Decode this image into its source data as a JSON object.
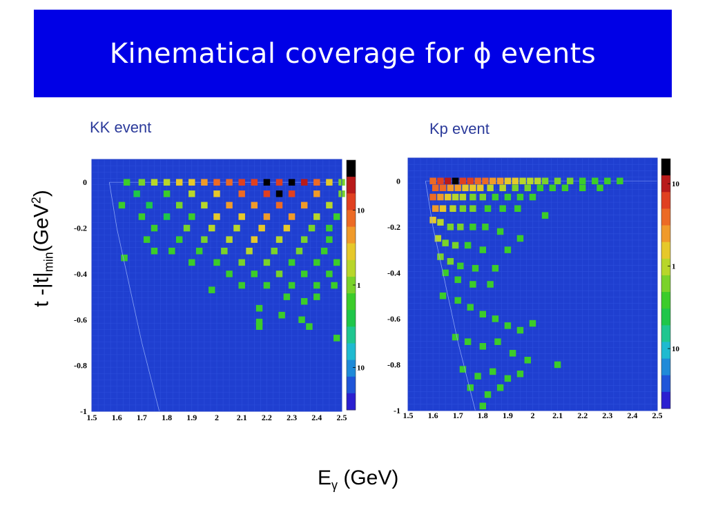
{
  "slide": {
    "title_text": "Kinematical coverage for",
    "title_symbol": "ϕ",
    "title_suffix": "events",
    "y_axis_label": {
      "main": "t -|t|",
      "sub": "min",
      "unit_pre": "(GeV",
      "sup": "2",
      "unit_post": ")"
    },
    "x_axis_label": {
      "main": "E",
      "sub": "γ",
      "unit": "(GeV)"
    }
  },
  "colors": {
    "banner": "#0000e6",
    "title": "#ffffff",
    "panel_label": "#2b3a9a",
    "plot_background": "#1f3fd0",
    "palette": [
      "#2b1fd0",
      "#1f55d8",
      "#1f8ad8",
      "#1fbad0",
      "#1fc690",
      "#1fc64a",
      "#3ccc2a",
      "#7ad22a",
      "#b8d62a",
      "#e6c82a",
      "#f09a2a",
      "#ec6a24",
      "#e04020",
      "#b81a1a",
      "#000000"
    ]
  },
  "chart_data": [
    {
      "type": "heatmap",
      "panel_label": "KK event",
      "x_range": [
        1.5,
        2.5
      ],
      "y_range": [
        -1,
        0.1
      ],
      "x_ticks": [
        "1.5",
        "1.6",
        "1.7",
        "1.8",
        "1.9",
        "2",
        "2.1",
        "2.2",
        "2.3",
        "2.4",
        "2.5"
      ],
      "y_ticks": [
        "0",
        "-0.2",
        "-0.4",
        "-0.6",
        "-0.8",
        "-1"
      ],
      "colorbar_ticks": [
        {
          "label": "10",
          "level": 0.8
        },
        {
          "label": "1",
          "level": 0.5
        },
        {
          "label": "10",
          "level": 0.17
        }
      ],
      "boundary_curve": [
        [
          1.57,
          0.0
        ],
        [
          1.6,
          -0.2
        ],
        [
          1.65,
          -0.45
        ],
        [
          1.7,
          -0.7
        ],
        [
          1.77,
          -1.0
        ]
      ],
      "cells": [
        [
          [
            1.64,
            0.0,
            6
          ],
          [
            1.7,
            0.0,
            7
          ],
          [
            1.75,
            0.0,
            8
          ],
          [
            1.8,
            0.0,
            8
          ],
          [
            1.85,
            0.0,
            9
          ],
          [
            1.9,
            0.0,
            9
          ],
          [
            1.95,
            0.0,
            10
          ],
          [
            2.0,
            0.0,
            11
          ],
          [
            2.05,
            0.0,
            11
          ],
          [
            2.1,
            0.0,
            12
          ],
          [
            2.15,
            0.0,
            12
          ],
          [
            2.2,
            0.0,
            14
          ],
          [
            2.25,
            0.0,
            12
          ],
          [
            2.3,
            0.0,
            14
          ],
          [
            2.35,
            0.0,
            13
          ],
          [
            2.4,
            0.0,
            11
          ],
          [
            2.45,
            0.0,
            9
          ],
          [
            2.5,
            0.0,
            7
          ]
        ],
        [
          [
            1.68,
            -0.05,
            5
          ],
          [
            1.8,
            -0.05,
            6
          ],
          [
            1.9,
            -0.05,
            8
          ],
          [
            2.0,
            -0.05,
            9
          ],
          [
            2.1,
            -0.05,
            11
          ],
          [
            2.2,
            -0.05,
            12
          ],
          [
            2.25,
            -0.05,
            14
          ],
          [
            2.3,
            -0.05,
            12
          ],
          [
            2.4,
            -0.05,
            10
          ],
          [
            2.5,
            -0.05,
            7
          ]
        ],
        [
          [
            1.62,
            -0.1,
            6
          ],
          [
            1.73,
            -0.1,
            5
          ],
          [
            1.85,
            -0.1,
            7
          ],
          [
            1.95,
            -0.1,
            8
          ],
          [
            2.05,
            -0.1,
            10
          ],
          [
            2.15,
            -0.1,
            10
          ],
          [
            2.25,
            -0.1,
            11
          ],
          [
            2.35,
            -0.1,
            10
          ],
          [
            2.45,
            -0.1,
            8
          ]
        ],
        [
          [
            1.7,
            -0.15,
            6
          ],
          [
            1.8,
            -0.15,
            5
          ],
          [
            1.9,
            -0.15,
            6
          ],
          [
            2.0,
            -0.15,
            9
          ],
          [
            2.1,
            -0.15,
            9
          ],
          [
            2.2,
            -0.15,
            10
          ],
          [
            2.3,
            -0.15,
            10
          ],
          [
            2.4,
            -0.15,
            8
          ],
          [
            2.48,
            -0.15,
            6
          ]
        ],
        [
          [
            1.75,
            -0.2,
            6
          ],
          [
            1.88,
            -0.2,
            7
          ],
          [
            1.98,
            -0.2,
            8
          ],
          [
            2.08,
            -0.2,
            8
          ],
          [
            2.18,
            -0.2,
            9
          ],
          [
            2.28,
            -0.2,
            9
          ],
          [
            2.38,
            -0.2,
            7
          ],
          [
            2.45,
            -0.2,
            6
          ]
        ],
        [
          [
            1.72,
            -0.25,
            6
          ],
          [
            1.85,
            -0.25,
            6
          ],
          [
            1.95,
            -0.25,
            7
          ],
          [
            2.05,
            -0.25,
            8
          ],
          [
            2.15,
            -0.25,
            9
          ],
          [
            2.25,
            -0.25,
            8
          ],
          [
            2.35,
            -0.25,
            7
          ],
          [
            2.45,
            -0.25,
            6
          ]
        ],
        [
          [
            1.75,
            -0.3,
            6
          ],
          [
            1.82,
            -0.3,
            6
          ],
          [
            1.93,
            -0.3,
            6
          ],
          [
            2.03,
            -0.3,
            7
          ],
          [
            2.13,
            -0.3,
            8
          ],
          [
            2.23,
            -0.3,
            7
          ],
          [
            2.33,
            -0.3,
            7
          ],
          [
            2.43,
            -0.3,
            6
          ]
        ],
        [
          [
            1.63,
            -0.33,
            6
          ],
          [
            1.9,
            -0.35,
            6
          ],
          [
            2.0,
            -0.35,
            6
          ],
          [
            2.1,
            -0.35,
            7
          ],
          [
            2.2,
            -0.35,
            7
          ],
          [
            2.3,
            -0.35,
            6
          ],
          [
            2.4,
            -0.35,
            6
          ],
          [
            2.48,
            -0.35,
            6
          ]
        ],
        [
          [
            2.05,
            -0.4,
            6
          ],
          [
            2.15,
            -0.4,
            6
          ],
          [
            2.25,
            -0.4,
            7
          ],
          [
            2.35,
            -0.4,
            6
          ],
          [
            2.45,
            -0.4,
            6
          ],
          [
            2.1,
            -0.45,
            6
          ],
          [
            2.2,
            -0.45,
            6
          ],
          [
            2.3,
            -0.45,
            6
          ],
          [
            2.4,
            -0.45,
            6
          ],
          [
            2.47,
            -0.45,
            6
          ]
        ],
        [
          [
            1.98,
            -0.47,
            6
          ],
          [
            2.28,
            -0.5,
            6
          ],
          [
            2.35,
            -0.52,
            6
          ],
          [
            2.4,
            -0.5,
            6
          ],
          [
            2.17,
            -0.55,
            6
          ],
          [
            2.26,
            -0.58,
            6
          ],
          [
            2.34,
            -0.6,
            6
          ],
          [
            2.17,
            -0.61,
            6
          ],
          [
            2.17,
            -0.63,
            6
          ],
          [
            2.37,
            -0.63,
            6
          ],
          [
            2.48,
            -0.68,
            6
          ]
        ]
      ]
    },
    {
      "type": "heatmap",
      "panel_label": "Kp event",
      "x_range": [
        1.5,
        2.5
      ],
      "y_range": [
        -1,
        0.1
      ],
      "x_ticks": [
        "1.5",
        "1.6",
        "1.7",
        "1.8",
        "1.9",
        "2",
        "2.1",
        "2.2",
        "2.3",
        "2.4",
        "2.5"
      ],
      "y_ticks": [
        "0",
        "-0.2",
        "-0.4",
        "-0.6",
        "-0.8",
        "-1"
      ],
      "colorbar_ticks": [
        {
          "label": "10",
          "level": 0.9
        },
        {
          "label": "1",
          "level": 0.57
        },
        {
          "label": "10",
          "level": 0.24
        }
      ],
      "boundary_curve": [
        [
          1.57,
          0.0
        ],
        [
          1.6,
          -0.2
        ],
        [
          1.65,
          -0.45
        ],
        [
          1.7,
          -0.7
        ],
        [
          1.77,
          -1.0
        ]
      ],
      "cells": [
        [
          [
            1.6,
            0.0,
            11
          ],
          [
            1.63,
            0.0,
            12
          ],
          [
            1.66,
            0.0,
            13
          ],
          [
            1.69,
            0.0,
            14
          ],
          [
            1.72,
            0.0,
            12
          ],
          [
            1.75,
            0.0,
            12
          ],
          [
            1.78,
            0.0,
            11
          ],
          [
            1.81,
            0.0,
            11
          ],
          [
            1.84,
            0.0,
            10
          ],
          [
            1.87,
            0.0,
            10
          ],
          [
            1.9,
            0.0,
            9
          ],
          [
            1.93,
            0.0,
            9
          ],
          [
            1.96,
            0.0,
            8
          ],
          [
            1.99,
            0.0,
            8
          ],
          [
            2.02,
            0.0,
            8
          ],
          [
            2.05,
            0.0,
            7
          ],
          [
            2.1,
            0.0,
            7
          ],
          [
            2.15,
            0.0,
            7
          ],
          [
            2.2,
            0.0,
            6
          ],
          [
            2.25,
            0.0,
            6
          ],
          [
            2.3,
            0.0,
            6
          ],
          [
            2.35,
            0.0,
            6
          ]
        ],
        [
          [
            1.61,
            -0.03,
            11
          ],
          [
            1.64,
            -0.03,
            11
          ],
          [
            1.67,
            -0.03,
            10
          ],
          [
            1.7,
            -0.03,
            10
          ],
          [
            1.73,
            -0.03,
            9
          ],
          [
            1.76,
            -0.03,
            9
          ],
          [
            1.79,
            -0.03,
            9
          ],
          [
            1.83,
            -0.03,
            8
          ],
          [
            1.88,
            -0.03,
            8
          ],
          [
            1.93,
            -0.03,
            7
          ],
          [
            1.98,
            -0.03,
            7
          ],
          [
            2.03,
            -0.03,
            6
          ],
          [
            2.08,
            -0.03,
            6
          ],
          [
            2.13,
            -0.03,
            6
          ],
          [
            2.2,
            -0.03,
            6
          ],
          [
            2.27,
            -0.03,
            6
          ]
        ],
        [
          [
            1.6,
            -0.07,
            11
          ],
          [
            1.63,
            -0.07,
            10
          ],
          [
            1.66,
            -0.07,
            9
          ],
          [
            1.69,
            -0.07,
            8
          ],
          [
            1.72,
            -0.07,
            8
          ],
          [
            1.76,
            -0.07,
            7
          ],
          [
            1.8,
            -0.07,
            7
          ],
          [
            1.85,
            -0.07,
            6
          ],
          [
            1.9,
            -0.07,
            6
          ],
          [
            1.95,
            -0.07,
            6
          ],
          [
            2.0,
            -0.07,
            6
          ]
        ],
        [
          [
            1.61,
            -0.12,
            10
          ],
          [
            1.64,
            -0.12,
            9
          ],
          [
            1.68,
            -0.12,
            8
          ],
          [
            1.72,
            -0.12,
            7
          ],
          [
            1.76,
            -0.12,
            7
          ],
          [
            1.82,
            -0.12,
            6
          ],
          [
            1.88,
            -0.12,
            6
          ],
          [
            1.94,
            -0.12,
            6
          ],
          [
            2.05,
            -0.15,
            6
          ]
        ],
        [
          [
            1.6,
            -0.17,
            9
          ],
          [
            1.63,
            -0.18,
            8
          ],
          [
            1.67,
            -0.2,
            7
          ],
          [
            1.71,
            -0.2,
            7
          ],
          [
            1.76,
            -0.2,
            6
          ],
          [
            1.81,
            -0.2,
            6
          ],
          [
            1.87,
            -0.22,
            6
          ],
          [
            1.95,
            -0.25,
            6
          ]
        ],
        [
          [
            1.62,
            -0.25,
            8
          ],
          [
            1.65,
            -0.27,
            7
          ],
          [
            1.69,
            -0.28,
            7
          ],
          [
            1.74,
            -0.28,
            6
          ],
          [
            1.8,
            -0.3,
            6
          ],
          [
            1.9,
            -0.3,
            6
          ]
        ],
        [
          [
            1.63,
            -0.33,
            7
          ],
          [
            1.67,
            -0.35,
            7
          ],
          [
            1.71,
            -0.37,
            6
          ],
          [
            1.77,
            -0.38,
            6
          ],
          [
            1.85,
            -0.38,
            6
          ],
          [
            1.65,
            -0.4,
            6
          ],
          [
            1.7,
            -0.43,
            6
          ],
          [
            1.76,
            -0.45,
            6
          ],
          [
            1.83,
            -0.45,
            6
          ]
        ],
        [
          [
            1.64,
            -0.5,
            6
          ],
          [
            1.7,
            -0.52,
            6
          ],
          [
            1.75,
            -0.55,
            6
          ],
          [
            1.8,
            -0.58,
            6
          ],
          [
            1.85,
            -0.6,
            6
          ],
          [
            1.9,
            -0.63,
            6
          ],
          [
            1.95,
            -0.65,
            6
          ],
          [
            2.0,
            -0.62,
            6
          ]
        ],
        [
          [
            1.69,
            -0.68,
            6
          ],
          [
            1.74,
            -0.7,
            6
          ],
          [
            1.8,
            -0.72,
            6
          ],
          [
            1.86,
            -0.7,
            6
          ],
          [
            1.92,
            -0.75,
            6
          ],
          [
            1.98,
            -0.78,
            6
          ],
          [
            2.1,
            -0.8,
            6
          ]
        ],
        [
          [
            1.72,
            -0.82,
            6
          ],
          [
            1.78,
            -0.85,
            6
          ],
          [
            1.84,
            -0.83,
            6
          ],
          [
            1.9,
            -0.86,
            6
          ],
          [
            1.95,
            -0.84,
            6
          ],
          [
            1.75,
            -0.9,
            6
          ],
          [
            1.82,
            -0.93,
            6
          ],
          [
            1.87,
            -0.9,
            6
          ],
          [
            1.8,
            -0.98,
            6
          ]
        ]
      ]
    }
  ]
}
